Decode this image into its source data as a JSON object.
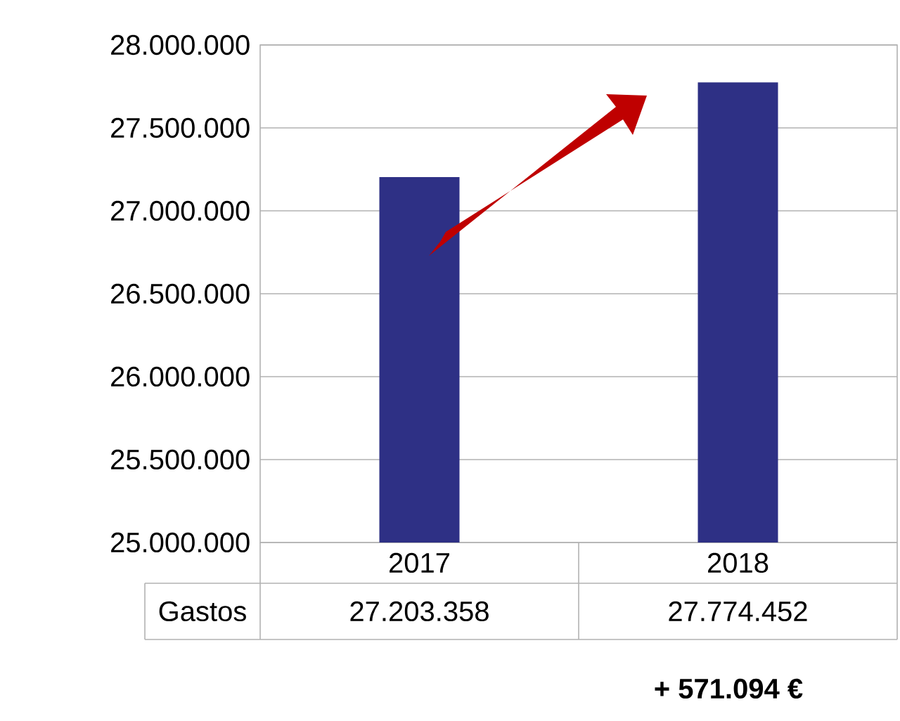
{
  "chart_data": {
    "type": "bar",
    "categories": [
      "2017",
      "2018"
    ],
    "series": [
      {
        "name": "Gastos",
        "color": "#2e3085",
        "values": [
          27203358,
          27774452
        ],
        "value_labels": [
          "27.203.358",
          "27.774.452"
        ]
      }
    ],
    "ylim": [
      25000000,
      28000000
    ],
    "yticks": [
      {
        "value": 25000000,
        "label": "25.000.000"
      },
      {
        "value": 25500000,
        "label": "25.500.000"
      },
      {
        "value": 26000000,
        "label": "26.000.000"
      },
      {
        "value": 26500000,
        "label": "26.500.000"
      },
      {
        "value": 27000000,
        "label": "27.000.000"
      },
      {
        "value": 27500000,
        "label": "27.500.000"
      },
      {
        "value": 28000000,
        "label": "28.000.000"
      }
    ],
    "grid": "y",
    "annotations": [
      "**+ 571.094 €**"
    ]
  }
}
